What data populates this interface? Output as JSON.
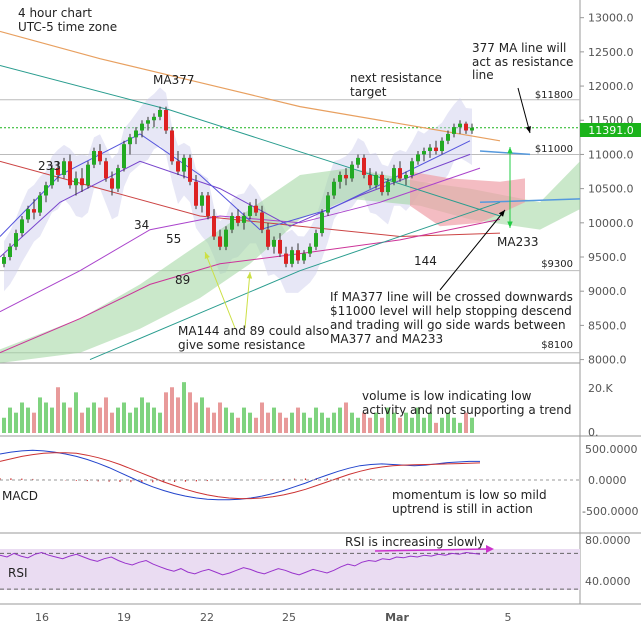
{
  "chart_data": {
    "type": "candlestick",
    "header": [
      "4 hour chart",
      "UTC-5 time zone"
    ],
    "current_price": "11391.0",
    "x_ticks": [
      "16",
      "19",
      "22",
      "25",
      "Mar",
      "5"
    ],
    "y_ticks": [
      "13000.0",
      "12500.0",
      "12000.0",
      "11500.0",
      "11000.0",
      "10500.0",
      "10000.0",
      "9500.0",
      "9000.0",
      "8500.0",
      "8000.0"
    ],
    "price_range": [
      7950,
      13200
    ],
    "levels": [
      "$11800",
      "$11000",
      "$9300",
      "$8100"
    ],
    "ma_labels": [
      "MA377",
      "233",
      "34",
      "55",
      "89",
      "144",
      "MA233"
    ],
    "annotations": {
      "resistance_line": [
        "377 MA line will",
        "act as resistance",
        "line"
      ],
      "next_target": [
        "next resistance",
        "target"
      ],
      "ma_resist": [
        "MA144 and 89 could also",
        "give some resistance"
      ],
      "cross_note": [
        "If MA377 line will be crossed downwards",
        "$11000 level will help stopping descend",
        "and trading will go side wards between",
        "MA377 and MA233"
      ],
      "volume_note": [
        "volume is low indicating low",
        "activity and not supporting a trend"
      ],
      "macd_note": [
        "momentum is low so mild",
        "uptrend is still in action"
      ],
      "rsi_note": "RSI is increasing slowly"
    },
    "volume": {
      "ticks": [
        "20.K",
        "0."
      ]
    },
    "macd": {
      "label": "MACD",
      "ticks": [
        "500.0000",
        "0.0000",
        "-500.0000"
      ]
    },
    "rsi": {
      "label": "RSI",
      "ticks": [
        "80.0000",
        "40.0000"
      ],
      "levels": [
        70,
        30
      ]
    },
    "candles": [
      [
        9400,
        9540,
        9350,
        9500
      ],
      [
        9500,
        9700,
        9450,
        9650
      ],
      [
        9650,
        9900,
        9600,
        9850
      ],
      [
        9850,
        10100,
        9800,
        10050
      ],
      [
        10050,
        10250,
        10000,
        10200
      ],
      [
        10200,
        10350,
        10050,
        10150
      ],
      [
        10150,
        10450,
        10100,
        10400
      ],
      [
        10400,
        10600,
        10300,
        10550
      ],
      [
        10550,
        10850,
        10500,
        10800
      ],
      [
        10800,
        10900,
        10600,
        10700
      ],
      [
        10700,
        10950,
        10650,
        10900
      ],
      [
        10900,
        11000,
        10500,
        10550
      ],
      [
        10550,
        10750,
        10400,
        10650
      ],
      [
        10650,
        10800,
        10450,
        10550
      ],
      [
        10550,
        10900,
        10500,
        10850
      ],
      [
        10850,
        11100,
        10800,
        11050
      ],
      [
        11050,
        11150,
        10850,
        10900
      ],
      [
        10900,
        10950,
        10600,
        10650
      ],
      [
        10650,
        10750,
        10400,
        10500
      ],
      [
        10500,
        10850,
        10450,
        10800
      ],
      [
        10800,
        11200,
        10750,
        11150
      ],
      [
        11150,
        11300,
        11000,
        11250
      ],
      [
        11250,
        11400,
        11150,
        11350
      ],
      [
        11350,
        11500,
        11250,
        11450
      ],
      [
        11450,
        11550,
        11350,
        11500
      ],
      [
        11500,
        11600,
        11400,
        11550
      ],
      [
        11550,
        11700,
        11500,
        11650
      ],
      [
        11650,
        11700,
        11300,
        11350
      ],
      [
        11350,
        11400,
        10850,
        10900
      ],
      [
        10900,
        11050,
        10700,
        10750
      ],
      [
        10750,
        11000,
        10650,
        10950
      ],
      [
        10950,
        11000,
        10550,
        10600
      ],
      [
        10600,
        10700,
        10200,
        10250
      ],
      [
        10250,
        10450,
        10150,
        10400
      ],
      [
        10400,
        10450,
        10050,
        10100
      ],
      [
        10100,
        10200,
        9750,
        9800
      ],
      [
        9800,
        9900,
        9600,
        9650
      ],
      [
        9650,
        9950,
        9600,
        9900
      ],
      [
        9900,
        10150,
        9850,
        10100
      ],
      [
        10100,
        10200,
        9950,
        10000
      ],
      [
        10000,
        10150,
        9900,
        10100
      ],
      [
        10100,
        10300,
        10050,
        10250
      ],
      [
        10250,
        10350,
        10100,
        10150
      ],
      [
        10150,
        10250,
        9850,
        9900
      ],
      [
        9900,
        10000,
        9600,
        9650
      ],
      [
        9650,
        9800,
        9550,
        9750
      ],
      [
        9750,
        9850,
        9500,
        9550
      ],
      [
        9550,
        9650,
        9350,
        9400
      ],
      [
        9400,
        9650,
        9350,
        9600
      ],
      [
        9600,
        9700,
        9400,
        9450
      ],
      [
        9450,
        9600,
        9400,
        9550
      ],
      [
        9550,
        9700,
        9500,
        9650
      ],
      [
        9650,
        9900,
        9600,
        9850
      ],
      [
        9850,
        10200,
        9800,
        10150
      ],
      [
        10150,
        10450,
        10100,
        10400
      ],
      [
        10400,
        10650,
        10350,
        10600
      ],
      [
        10600,
        10750,
        10500,
        10700
      ],
      [
        10700,
        10800,
        10550,
        10650
      ],
      [
        10650,
        10900,
        10600,
        10850
      ],
      [
        10850,
        11000,
        10800,
        10950
      ],
      [
        10950,
        11000,
        10650,
        10700
      ],
      [
        10700,
        10800,
        10500,
        10550
      ],
      [
        10550,
        10750,
        10500,
        10700
      ],
      [
        10700,
        10750,
        10400,
        10450
      ],
      [
        10450,
        10650,
        10400,
        10600
      ],
      [
        10600,
        10850,
        10550,
        10800
      ],
      [
        10800,
        10900,
        10600,
        10650
      ],
      [
        10650,
        10750,
        10550,
        10700
      ],
      [
        10700,
        10950,
        10650,
        10900
      ],
      [
        10900,
        11050,
        10850,
        11000
      ],
      [
        11000,
        11100,
        10900,
        11050
      ],
      [
        11050,
        11150,
        10950,
        11100
      ],
      [
        11100,
        11200,
        11000,
        11050
      ],
      [
        11050,
        11250,
        11000,
        11200
      ],
      [
        11200,
        11350,
        11150,
        11300
      ],
      [
        11300,
        11450,
        11250,
        11400
      ],
      [
        11400,
        11500,
        11300,
        11450
      ],
      [
        11450,
        11480,
        11300,
        11350
      ],
      [
        11350,
        11450,
        11300,
        11391
      ]
    ],
    "volumes": [
      3,
      5,
      4,
      6,
      5,
      4,
      7,
      6,
      5,
      9,
      6,
      5,
      8,
      4,
      5,
      6,
      5,
      7,
      4,
      5,
      6,
      4,
      5,
      7,
      6,
      5,
      4,
      8,
      9,
      7,
      10,
      8,
      6,
      7,
      5,
      4,
      6,
      5,
      4,
      3,
      5,
      4,
      3,
      6,
      4,
      5,
      4,
      3,
      4,
      5,
      4,
      3,
      5,
      4,
      3,
      4,
      5,
      6,
      4,
      3,
      4,
      3,
      4,
      3,
      5,
      4,
      3,
      4,
      3,
      5,
      3,
      4,
      2,
      3,
      4,
      3,
      2,
      4,
      3
    ],
    "macd_values": [
      420,
      450,
      470,
      480,
      470,
      450,
      420,
      380,
      330,
      270,
      200,
      120,
      40,
      -40,
      -110,
      -170,
      -220,
      -260,
      -290,
      -310,
      -320,
      -320,
      -310,
      -290,
      -260,
      -220,
      -170,
      -110,
      -50,
      20,
      80,
      140,
      190,
      230,
      250,
      260,
      250,
      240,
      230,
      240,
      260,
      280,
      290,
      300,
      300
    ],
    "macd_signal": [
      300,
      340,
      380,
      410,
      430,
      440,
      440,
      430,
      400,
      360,
      310,
      250,
      180,
      110,
      40,
      -30,
      -90,
      -150,
      -200,
      -240,
      -270,
      -290,
      -300,
      -300,
      -290,
      -270,
      -240,
      -200,
      -150,
      -90,
      -30,
      30,
      90,
      140,
      180,
      210,
      230,
      240,
      245,
      250,
      255,
      260,
      265,
      270,
      275
    ],
    "macd_hist": [
      120,
      110,
      90,
      70,
      40,
      10,
      -20,
      -50,
      -70,
      -90,
      -110,
      -130,
      -140,
      -150,
      -150,
      -140,
      -130,
      -110,
      -90,
      -70,
      -50,
      -30,
      -10,
      10,
      30,
      50,
      70,
      90,
      100,
      110,
      110,
      110,
      100,
      90,
      70,
      50,
      20,
      0,
      -15,
      -10,
      5,
      20,
      25,
      30,
      25
    ],
    "rsi_values": [
      68,
      66,
      70,
      67,
      65,
      69,
      71,
      68,
      66,
      64,
      67,
      69,
      66,
      63,
      61,
      64,
      66,
      62,
      59,
      57,
      60,
      62,
      58,
      55,
      52,
      50,
      53,
      49,
      47,
      50,
      52,
      49,
      46,
      48,
      51,
      54,
      52,
      49,
      47,
      50,
      53,
      51,
      48,
      46,
      49,
      52,
      50,
      48,
      51,
      55,
      58,
      56,
      60,
      62,
      61,
      64,
      63,
      66,
      65,
      67,
      66,
      68,
      67,
      69,
      68,
      70,
      69,
      71,
      70,
      69
    ]
  }
}
